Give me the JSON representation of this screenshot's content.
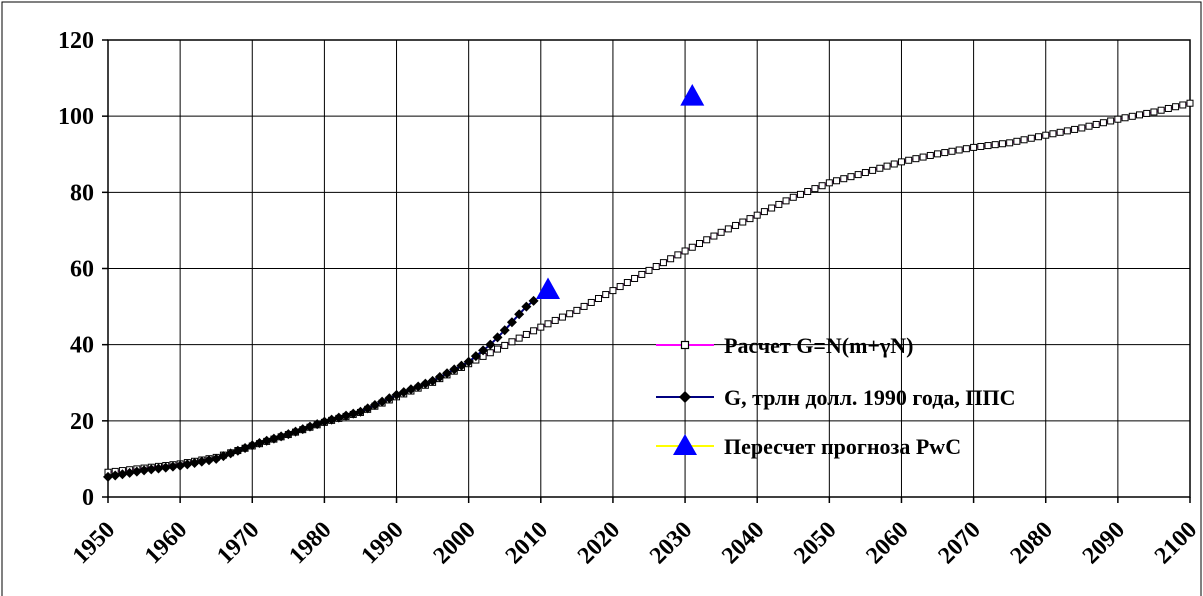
{
  "chart_data": {
    "type": "line",
    "title": "",
    "xlabel": "",
    "ylabel": "",
    "xlim": [
      1950,
      2100
    ],
    "ylim": [
      0,
      120
    ],
    "x_ticks": [
      1950,
      1960,
      1970,
      1980,
      1990,
      2000,
      2010,
      2020,
      2030,
      2040,
      2050,
      2060,
      2070,
      2080,
      2090,
      2100
    ],
    "y_ticks": [
      0,
      20,
      40,
      60,
      80,
      100,
      120
    ],
    "grid": true,
    "legend_position": "right",
    "series": [
      {
        "name": "Расчет G=N(m+γN)",
        "color": "#ff00ff",
        "marker": "open-square",
        "points": [
          [
            1950,
            6.5
          ],
          [
            1955,
            7.6
          ],
          [
            1960,
            8.7
          ],
          [
            1965,
            10.4
          ],
          [
            1970,
            13.4
          ],
          [
            1975,
            16.4
          ],
          [
            1980,
            19.6
          ],
          [
            1985,
            22.2
          ],
          [
            1990,
            26.3
          ],
          [
            1995,
            30.1
          ],
          [
            2000,
            35.0
          ],
          [
            2005,
            39.8
          ],
          [
            2010,
            44.6
          ],
          [
            2015,
            49.0
          ],
          [
            2020,
            54.2
          ],
          [
            2025,
            59.5
          ],
          [
            2030,
            64.6
          ],
          [
            2035,
            69.5
          ],
          [
            2040,
            74.0
          ],
          [
            2045,
            78.7
          ],
          [
            2050,
            82.5
          ],
          [
            2055,
            85.2
          ],
          [
            2060,
            88.0
          ],
          [
            2065,
            90.1
          ],
          [
            2070,
            91.8
          ],
          [
            2075,
            93.0
          ],
          [
            2080,
            95.0
          ],
          [
            2085,
            96.9
          ],
          [
            2090,
            99.2
          ],
          [
            2095,
            101.1
          ],
          [
            2100,
            103.4
          ]
        ]
      },
      {
        "name": "G, трлн долл. 1990 года, ППС",
        "color": "#000080",
        "marker": "filled-diamond",
        "points": [
          [
            1950,
            5.3
          ],
          [
            1955,
            7.0
          ],
          [
            1960,
            8.2
          ],
          [
            1965,
            10.0
          ],
          [
            1970,
            13.6
          ],
          [
            1975,
            16.5
          ],
          [
            1980,
            19.8
          ],
          [
            1985,
            22.4
          ],
          [
            1990,
            26.8
          ],
          [
            1995,
            30.5
          ],
          [
            2000,
            35.5
          ],
          [
            2003,
            40.0
          ],
          [
            2005,
            43.8
          ],
          [
            2007,
            48.0
          ],
          [
            2008,
            50.0
          ],
          [
            2009,
            51.5
          ]
        ]
      },
      {
        "name": "Пересчет прогноза PwC",
        "color": "#ffff00",
        "marker_color": "#0000ff",
        "marker": "filled-triangle",
        "points": [
          [
            2011,
            54.5
          ],
          [
            2031,
            105.3
          ]
        ]
      }
    ]
  }
}
